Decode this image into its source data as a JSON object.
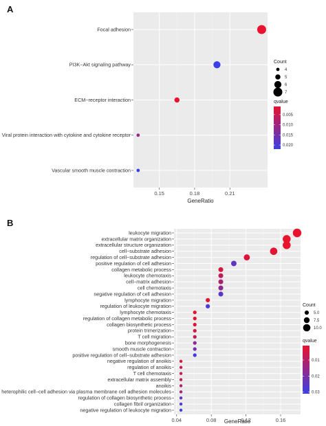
{
  "chart_data": [
    {
      "panel": "A",
      "type": "scatter",
      "xlabel": "GeneRatio",
      "xticks": [
        "0.15",
        "0.18",
        "0.21"
      ],
      "xlim": [
        0.128,
        0.242
      ],
      "points": [
        {
          "term": "Focal adhesion",
          "gene_ratio": 0.237,
          "count": 7,
          "qvalue": 0.001
        },
        {
          "term": "PI3K−Akt signaling pathway",
          "gene_ratio": 0.199,
          "count": 6,
          "qvalue": 0.022
        },
        {
          "term": "ECM−receptor interaction",
          "gene_ratio": 0.165,
          "count": 5,
          "qvalue": 0.001
        },
        {
          "term": "Viral protein interaction with cytokine and cytokine receptor",
          "gene_ratio": 0.132,
          "count": 4,
          "qvalue": 0.011
        },
        {
          "term": "Vascular smooth muscle contraction",
          "gene_ratio": 0.132,
          "count": 4,
          "qvalue": 0.022
        }
      ],
      "size_legend": {
        "title": "Count",
        "values": [
          "4",
          "5",
          "6",
          "7"
        ]
      },
      "color_legend": {
        "title": "qvalue",
        "ticks": [
          "0.005",
          "0.010",
          "0.015",
          "0.020"
        ],
        "range": [
          0.001,
          0.022
        ],
        "low_color": "#e8132e",
        "high_color": "#3a3fe6"
      }
    },
    {
      "panel": "B",
      "type": "scatter",
      "xlabel": "GeneRatio",
      "xticks": [
        "0.04",
        "0.08",
        "0.12",
        "0.16"
      ],
      "xlim": [
        0.037,
        0.183
      ],
      "points": [
        {
          "term": "leukocyte migration",
          "gene_ratio": 0.179,
          "count": 12,
          "qvalue": 0.001
        },
        {
          "term": "extracellular matrix organization",
          "gene_ratio": 0.167,
          "count": 11,
          "qvalue": 0.001
        },
        {
          "term": "extracellular structure organization",
          "gene_ratio": 0.167,
          "count": 11,
          "qvalue": 0.001
        },
        {
          "term": "cell−substrate adhesion",
          "gene_ratio": 0.152,
          "count": 10,
          "qvalue": 0.002
        },
        {
          "term": "regulation of cell−substrate adhesion",
          "gene_ratio": 0.121,
          "count": 8,
          "qvalue": 0.003
        },
        {
          "term": "positive regulation of cell adhesion",
          "gene_ratio": 0.106,
          "count": 7,
          "qvalue": 0.025
        },
        {
          "term": "collagen metabolic process",
          "gene_ratio": 0.091,
          "count": 6,
          "qvalue": 0.004
        },
        {
          "term": "leukocyte chemotaxis",
          "gene_ratio": 0.091,
          "count": 6,
          "qvalue": 0.008
        },
        {
          "term": "cell−matrix adhesion",
          "gene_ratio": 0.091,
          "count": 6,
          "qvalue": 0.012
        },
        {
          "term": "cell chemotaxis",
          "gene_ratio": 0.091,
          "count": 6,
          "qvalue": 0.016
        },
        {
          "term": "negative regulation of cell adhesion",
          "gene_ratio": 0.091,
          "count": 6,
          "qvalue": 0.026
        },
        {
          "term": "lymphocyte migration",
          "gene_ratio": 0.076,
          "count": 5,
          "qvalue": 0.002
        },
        {
          "term": "regulation of leukocyte migration",
          "gene_ratio": 0.076,
          "count": 5,
          "qvalue": 0.028
        },
        {
          "term": "lymphocyte chemotaxis",
          "gene_ratio": 0.061,
          "count": 4,
          "qvalue": 0.001
        },
        {
          "term": "regulation of collagen metabolic process",
          "gene_ratio": 0.061,
          "count": 4,
          "qvalue": 0.002
        },
        {
          "term": "collagen biosynthetic process",
          "gene_ratio": 0.061,
          "count": 4,
          "qvalue": 0.003
        },
        {
          "term": "protein trimerization",
          "gene_ratio": 0.061,
          "count": 4,
          "qvalue": 0.005
        },
        {
          "term": "T cell migration",
          "gene_ratio": 0.061,
          "count": 4,
          "qvalue": 0.008
        },
        {
          "term": "bone morphogenesis",
          "gene_ratio": 0.061,
          "count": 4,
          "qvalue": 0.017
        },
        {
          "term": "smooth muscle contraction",
          "gene_ratio": 0.061,
          "count": 4,
          "qvalue": 0.022
        },
        {
          "term": "positive regulation of cell−substrate adhesion",
          "gene_ratio": 0.061,
          "count": 4,
          "qvalue": 0.029
        },
        {
          "term": "negative regulation of anoikis",
          "gene_ratio": 0.045,
          "count": 3,
          "qvalue": 0.004
        },
        {
          "term": "regulation of anoikis",
          "gene_ratio": 0.045,
          "count": 3,
          "qvalue": 0.006
        },
        {
          "term": "T cell chemotaxis",
          "gene_ratio": 0.045,
          "count": 3,
          "qvalue": 0.007
        },
        {
          "term": "extracellular matrix assembly",
          "gene_ratio": 0.045,
          "count": 3,
          "qvalue": 0.009
        },
        {
          "term": "anoikis",
          "gene_ratio": 0.045,
          "count": 3,
          "qvalue": 0.011
        },
        {
          "term": "heterophilic cell−cell adhesion via plasma membrane cell adhesion molecules",
          "gene_ratio": 0.045,
          "count": 3,
          "qvalue": 0.013
        },
        {
          "term": "regulation of collagen biosynthetic process",
          "gene_ratio": 0.045,
          "count": 3,
          "qvalue": 0.024
        },
        {
          "term": "collagen fibril organization",
          "gene_ratio": 0.045,
          "count": 3,
          "qvalue": 0.027
        },
        {
          "term": "negative regulation of leukocyte migration",
          "gene_ratio": 0.045,
          "count": 3,
          "qvalue": 0.03
        }
      ],
      "size_legend": {
        "title": "Count",
        "values": [
          "5.0",
          "7.5",
          "10.0"
        ]
      },
      "color_legend": {
        "title": "qvalue",
        "ticks": [
          "0.01",
          "0.02",
          "0.03"
        ],
        "range": [
          0.001,
          0.031
        ],
        "low_color": "#e8132e",
        "high_color": "#3a3fe6"
      }
    }
  ]
}
